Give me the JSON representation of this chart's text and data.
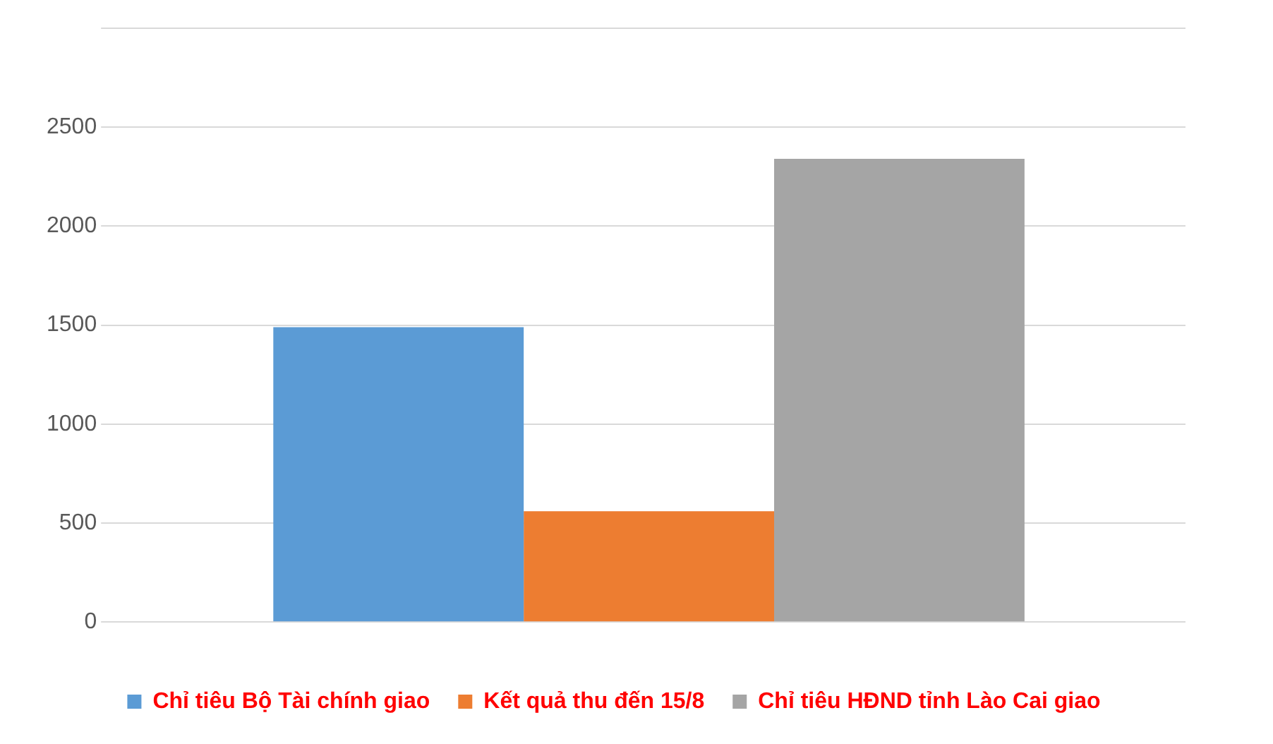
{
  "chart_data": {
    "type": "bar",
    "categories": [
      null
    ],
    "series": [
      {
        "name": "Chỉ tiêu Bộ Tài chính giao",
        "color": "#5b9bd5",
        "values": [
          1490
        ]
      },
      {
        "name": "Kết quả thu đến 15/8",
        "color": "#ed7d31",
        "values": [
          560
        ]
      },
      {
        "name": "Chỉ tiêu HĐND tỉnh Lào Cai giao",
        "color": "#a5a5a5",
        "values": [
          2340
        ]
      }
    ],
    "ylim": [
      0,
      3000
    ],
    "yticks": [
      0,
      500,
      1000,
      1500,
      2000,
      2500,
      {
        "value": 3000,
        "label": null
      }
    ],
    "grid": "y",
    "legend": "bottom"
  }
}
